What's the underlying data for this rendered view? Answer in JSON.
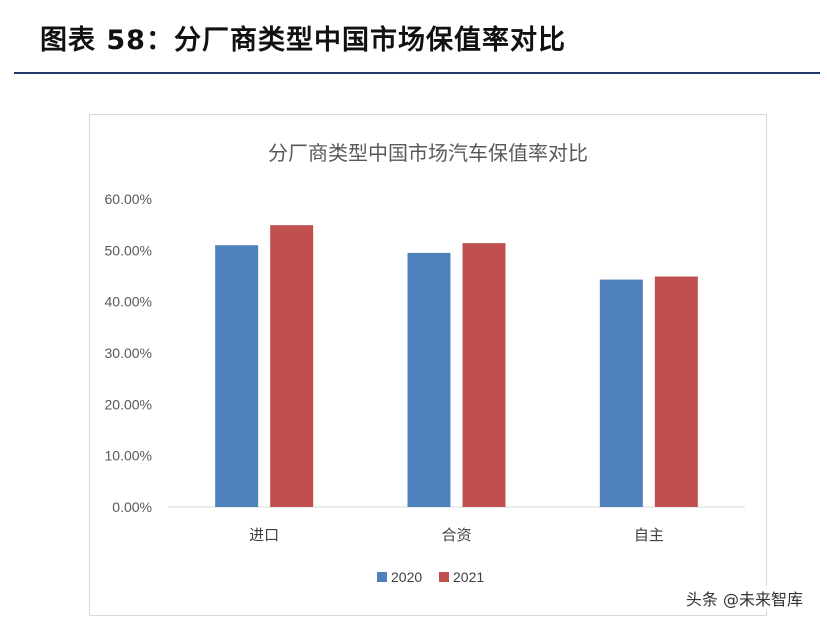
{
  "header": {
    "title": "图表 58：分厂商类型中国市场保值率对比"
  },
  "watermark": "头条 @未来智库",
  "colors": {
    "series_2020": "#4f81bd",
    "series_2021": "#c0504d",
    "rule": "#1f3a68"
  },
  "chart_data": {
    "type": "bar",
    "title": "分厂商类型中国市场汽车保值率对比",
    "categories": [
      "进口",
      "合资",
      "自主"
    ],
    "series": [
      {
        "name": "2020",
        "values": [
          0.51,
          0.495,
          0.443
        ],
        "color": "#4f81bd"
      },
      {
        "name": "2021",
        "values": [
          0.549,
          0.514,
          0.449
        ],
        "color": "#c0504d"
      }
    ],
    "ylim": [
      0,
      0.6
    ],
    "yticks": [
      "0.00%",
      "10.00%",
      "20.00%",
      "30.00%",
      "40.00%",
      "50.00%",
      "60.00%"
    ],
    "grid": false,
    "legend": "bottom"
  }
}
